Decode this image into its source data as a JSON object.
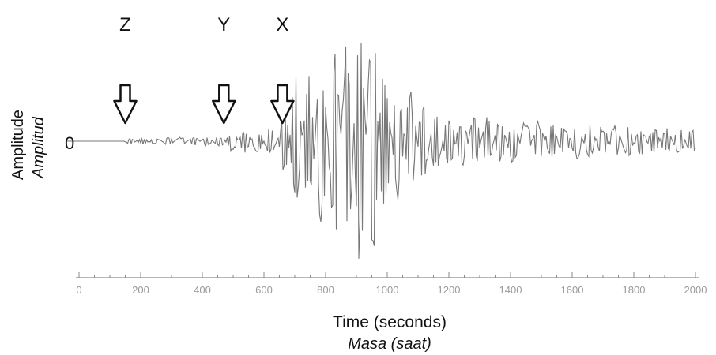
{
  "chart_data": {
    "type": "line",
    "title": "",
    "xlabel": "Time (seconds)",
    "xlabel_translation": "Masa (saat)",
    "ylabel": "Amplitude",
    "ylabel_translation": "Amplitud",
    "xlim": [
      0,
      2000
    ],
    "ylim": [
      -1,
      1
    ],
    "xticks": [
      0,
      200,
      400,
      600,
      800,
      1000,
      1200,
      1400,
      1600,
      1800,
      2000
    ],
    "y_zero_label": "0",
    "grid": false,
    "legend": "none",
    "line_color": "#777777",
    "annotations": [
      {
        "label": "Z",
        "x": 150,
        "type": "arrow"
      },
      {
        "label": "Y",
        "x": 470,
        "type": "arrow"
      },
      {
        "label": "X",
        "x": 660,
        "type": "arrow"
      }
    ],
    "envelope": [
      {
        "x": 0,
        "amp": 0.0
      },
      {
        "x": 140,
        "amp": 0.0
      },
      {
        "x": 160,
        "amp": 0.025
      },
      {
        "x": 460,
        "amp": 0.04
      },
      {
        "x": 480,
        "amp": 0.08
      },
      {
        "x": 650,
        "amp": 0.12
      },
      {
        "x": 680,
        "amp": 0.55
      },
      {
        "x": 760,
        "amp": 0.6
      },
      {
        "x": 860,
        "amp": 0.95
      },
      {
        "x": 980,
        "amp": 1.0
      },
      {
        "x": 1000,
        "amp": 0.55
      },
      {
        "x": 1100,
        "amp": 0.35
      },
      {
        "x": 1200,
        "amp": 0.22
      },
      {
        "x": 1400,
        "amp": 0.18
      },
      {
        "x": 1600,
        "amp": 0.14
      },
      {
        "x": 1800,
        "amp": 0.12
      },
      {
        "x": 2000,
        "amp": 0.1
      }
    ]
  }
}
